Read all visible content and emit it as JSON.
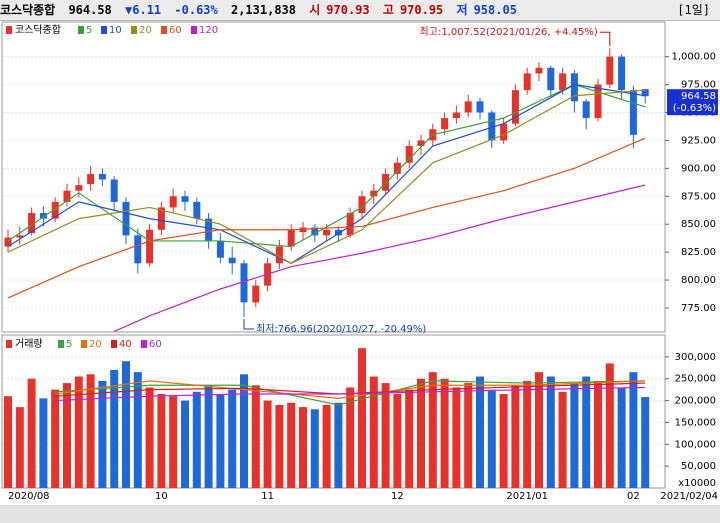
{
  "header": {
    "name": "코스닥종합",
    "price": "964.58",
    "change": "▼6.11",
    "change_pct": "-0.63%",
    "volume": "2,131,838",
    "open_label": "시",
    "open": "970.93",
    "high_label": "고",
    "high": "970.95",
    "low_label": "저",
    "low": "958.05",
    "period": "[1일]"
  },
  "chart_data": [
    {
      "type": "candlestick",
      "legend_title": "코스닥종합",
      "up_color": "#e8312a",
      "down_color": "#1f68d8",
      "categories": [
        "2020/08",
        null,
        null,
        null,
        null,
        null,
        null,
        null,
        null,
        null,
        null,
        null,
        null,
        "10",
        null,
        null,
        null,
        null,
        null,
        null,
        null,
        null,
        "11",
        null,
        null,
        null,
        null,
        null,
        null,
        null,
        null,
        null,
        null,
        "12",
        null,
        null,
        null,
        null,
        null,
        null,
        null,
        null,
        null,
        null,
        "2021/01",
        null,
        null,
        null,
        null,
        null,
        null,
        null,
        null,
        "02",
        "2021/02/04"
      ],
      "ohlc": [
        [
          830,
          845,
          825,
          838
        ],
        [
          838,
          848,
          832,
          840
        ],
        [
          842,
          865,
          840,
          860
        ],
        [
          860,
          866,
          848,
          855
        ],
        [
          855,
          874,
          852,
          870
        ],
        [
          870,
          886,
          866,
          880
        ],
        [
          880,
          892,
          874,
          885
        ],
        [
          886,
          902,
          880,
          895
        ],
        [
          895,
          900,
          884,
          890
        ],
        [
          890,
          893,
          862,
          870
        ],
        [
          870,
          874,
          832,
          840
        ],
        [
          840,
          846,
          806,
          815
        ],
        [
          815,
          850,
          812,
          845
        ],
        [
          845,
          870,
          840,
          865
        ],
        [
          865,
          882,
          860,
          875
        ],
        [
          875,
          880,
          862,
          870
        ],
        [
          870,
          874,
          850,
          855
        ],
        [
          855,
          860,
          828,
          835
        ],
        [
          835,
          842,
          815,
          820
        ],
        [
          820,
          830,
          805,
          815
        ],
        [
          815,
          818,
          766.96,
          780
        ],
        [
          780,
          800,
          776,
          795
        ],
        [
          795,
          820,
          790,
          815
        ],
        [
          815,
          836,
          810,
          830
        ],
        [
          830,
          850,
          826,
          845
        ],
        [
          843,
          852,
          836,
          847
        ],
        [
          847,
          850,
          834,
          840
        ],
        [
          840,
          850,
          835,
          845
        ],
        [
          845,
          848,
          834,
          840
        ],
        [
          840,
          865,
          838,
          860
        ],
        [
          860,
          880,
          856,
          875
        ],
        [
          875,
          886,
          868,
          880
        ],
        [
          880,
          900,
          876,
          895
        ],
        [
          895,
          910,
          890,
          905
        ],
        [
          905,
          925,
          900,
          920
        ],
        [
          920,
          930,
          912,
          925
        ],
        [
          925,
          940,
          920,
          935
        ],
        [
          935,
          950,
          930,
          945
        ],
        [
          945,
          956,
          940,
          950
        ],
        [
          950,
          966,
          946,
          960
        ],
        [
          960,
          963,
          944,
          950
        ],
        [
          950,
          952,
          918,
          925
        ],
        [
          925,
          945,
          922,
          940
        ],
        [
          940,
          975,
          938,
          970
        ],
        [
          970,
          990,
          966,
          985
        ],
        [
          985,
          995,
          978,
          990
        ],
        [
          990,
          992,
          964,
          970
        ],
        [
          970,
          990,
          966,
          985
        ],
        [
          985,
          988,
          950,
          960
        ],
        [
          960,
          962,
          935,
          945
        ],
        [
          945,
          980,
          942,
          975
        ],
        [
          975,
          1007.52,
          972,
          1000
        ],
        [
          1000,
          1002,
          962,
          970
        ],
        [
          970,
          974,
          918,
          930
        ],
        [
          970.93,
          970.95,
          958.05,
          964.58
        ]
      ],
      "ylim": [
        753.5,
        1031
      ],
      "yticks": [
        {
          "value": 1000,
          "label": "1,000.00"
        },
        {
          "value": 975,
          "label": "975.00"
        },
        {
          "value": 950,
          "label": "950.00"
        },
        {
          "value": 925,
          "label": "925.00"
        },
        {
          "value": 900,
          "label": "900.00"
        },
        {
          "value": 875,
          "label": "875.00"
        },
        {
          "value": 850,
          "label": "850.00"
        },
        {
          "value": 825,
          "label": "825.00"
        },
        {
          "value": 800,
          "label": "800.00"
        },
        {
          "value": 775,
          "label": "775.00"
        }
      ],
      "grid": true,
      "series": [
        {
          "name": "5",
          "color": "#3aa03a",
          "x": [
            0,
            6,
            12,
            18,
            24,
            30,
            36,
            42,
            48,
            54
          ],
          "values": [
            835,
            878,
            835,
            835,
            830,
            865,
            930,
            945,
            975,
            955
          ]
        },
        {
          "name": "10",
          "color": "#1f4fd0",
          "x": [
            0,
            6,
            12,
            18,
            24,
            30,
            36,
            42,
            48,
            54
          ],
          "values": [
            830,
            870,
            855,
            845,
            815,
            855,
            920,
            940,
            975,
            965
          ]
        },
        {
          "name": "20",
          "color": "#9a8a20",
          "x": [
            0,
            6,
            12,
            18,
            24,
            30,
            36,
            42,
            48,
            54
          ],
          "values": [
            825,
            855,
            865,
            850,
            815,
            845,
            905,
            930,
            965,
            970
          ]
        },
        {
          "name": "60",
          "color": "#e0501a",
          "x": [
            0,
            6,
            12,
            18,
            24,
            30,
            36,
            42,
            48,
            54
          ],
          "values": [
            784,
            812,
            835,
            845,
            845,
            848,
            865,
            880,
            900,
            927
          ]
        },
        {
          "name": "120",
          "color": "#c020d0",
          "x": [
            9,
            12,
            18,
            24,
            30,
            36,
            42,
            48,
            54
          ],
          "values": [
            754,
            768,
            792,
            812,
            824,
            838,
            855,
            870,
            885
          ]
        }
      ],
      "annotations": [
        {
          "text": "최고:1,007.52(2021/01/26, +4.45%)",
          "x": 51,
          "y": 1007.52,
          "color": "#d01010"
        },
        {
          "text": "최저:766.96(2020/10/27, -20.49%)",
          "x": 20,
          "y": 766.96,
          "color": "#1040c0"
        }
      ],
      "last_price_label": "964.58",
      "last_change_label": "(-0.63%)"
    },
    {
      "type": "volume",
      "legend_title": "거래량",
      "values": [
        210000,
        185000,
        250000,
        205000,
        225000,
        240000,
        255000,
        260000,
        245000,
        270000,
        290000,
        265000,
        230000,
        215000,
        210000,
        200000,
        220000,
        235000,
        215000,
        225000,
        260000,
        235000,
        200000,
        190000,
        195000,
        185000,
        180000,
        190000,
        195000,
        230000,
        320000,
        255000,
        240000,
        215000,
        225000,
        250000,
        265000,
        250000,
        230000,
        240000,
        255000,
        225000,
        215000,
        235000,
        245000,
        265000,
        255000,
        220000,
        240000,
        255000,
        245000,
        285000,
        230000,
        265000,
        208000
      ],
      "ylim": [
        0,
        350000
      ],
      "yticks": [
        {
          "value": 300000,
          "label": "300,000"
        },
        {
          "value": 250000,
          "label": "250,000"
        },
        {
          "value": 200000,
          "label": "200,000"
        },
        {
          "value": 150000,
          "label": "150,000"
        },
        {
          "value": 100000,
          "label": "100,000"
        },
        {
          "value": 50000,
          "label": "50,000"
        }
      ],
      "unit_label": "x10000",
      "grid": true,
      "series": [
        {
          "name": "5",
          "color": "#3aa03a",
          "x": [
            4,
            12,
            20,
            28,
            36,
            44,
            54
          ],
          "values": [
            220000,
            235000,
            235000,
            190000,
            245000,
            240000,
            245000
          ]
        },
        {
          "name": "20",
          "color": "#e07010",
          "x": [
            4,
            12,
            20,
            28,
            36,
            44,
            54
          ],
          "values": [
            215000,
            245000,
            225000,
            205000,
            235000,
            235000,
            245000
          ]
        },
        {
          "name": "40",
          "color": "#d02020",
          "x": [
            4,
            12,
            20,
            28,
            36,
            44,
            54
          ],
          "values": [
            210000,
            225000,
            228000,
            215000,
            225000,
            232000,
            240000
          ]
        },
        {
          "name": "60",
          "color": "#c020d0",
          "x": [
            4,
            12,
            20,
            28,
            36,
            44,
            54
          ],
          "values": [
            200000,
            210000,
            215000,
            215000,
            220000,
            225000,
            230000
          ]
        }
      ]
    }
  ]
}
